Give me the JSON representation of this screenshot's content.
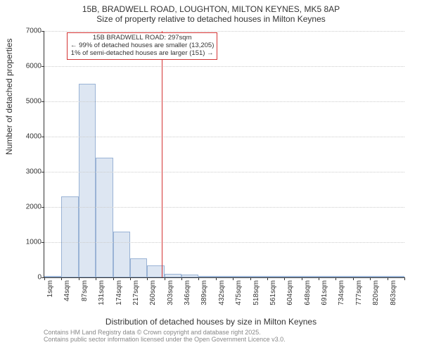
{
  "title_line1": "15B, BRADWELL ROAD, LOUGHTON, MILTON KEYNES, MK5 8AP",
  "title_line2": "Size of property relative to detached houses in Milton Keynes",
  "ylabel": "Number of detached properties",
  "xlabel": "Distribution of detached houses by size in Milton Keynes",
  "footer_line1": "Contains HM Land Registry data © Crown copyright and database right 2025.",
  "footer_line2": "Contains public sector information licensed under the Open Government Licence v3.0.",
  "chart": {
    "type": "histogram",
    "ymax": 7000,
    "ytick_step": 1000,
    "bar_fill": "#dde6f2",
    "bar_stroke": "#9ab3d5",
    "grid_color": "#cccccc",
    "axis_color": "#333333",
    "background_color": "#ffffff",
    "marker_color": "#d33333",
    "categories": [
      "1sqm",
      "44sqm",
      "87sqm",
      "131sqm",
      "174sqm",
      "217sqm",
      "260sqm",
      "303sqm",
      "346sqm",
      "389sqm",
      "432sqm",
      "475sqm",
      "518sqm",
      "561sqm",
      "604sqm",
      "648sqm",
      "691sqm",
      "734sqm",
      "777sqm",
      "820sqm",
      "863sqm"
    ],
    "values": [
      50,
      2300,
      5500,
      3400,
      1300,
      550,
      350,
      100,
      80,
      30,
      20,
      10,
      5,
      5,
      3,
      3,
      2,
      2,
      1,
      1,
      0
    ],
    "marker_bin_index": 6,
    "marker_fraction_in_bin": 0.86
  },
  "annotation": {
    "line1": "15B BRADWELL ROAD: 297sqm",
    "line2": "← 99% of detached houses are smaller (13,205)",
    "line3": "1% of semi-detached houses are larger (151) →"
  }
}
